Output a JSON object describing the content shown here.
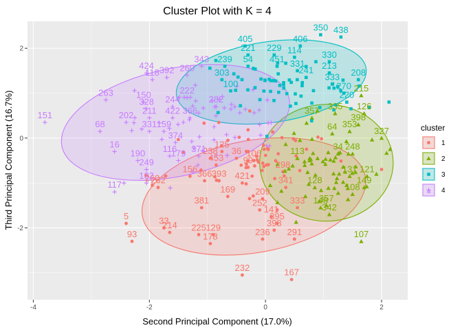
{
  "chart_data": {
    "type": "scatter",
    "title": "Cluster Plot with K = 4",
    "xlabel": "Second Principal Component (17.0%)",
    "ylabel": "Third Principal Component (16.7%)",
    "xlim": [
      -4.1,
      2.45
    ],
    "ylim": [
      -3.6,
      2.6
    ],
    "x_ticks": [
      -4,
      -2,
      0,
      2
    ],
    "y_ticks": [
      -2,
      0,
      2
    ],
    "grid": true,
    "legend": {
      "title": "cluster",
      "position": "right"
    },
    "series": [
      {
        "name": "1",
        "color": "#f8766d",
        "marker": "circle",
        "ellipse": {
          "cx": -0.2,
          "cy": -1.3,
          "rx": 1.95,
          "ry": 1.25,
          "angle": 10
        },
        "points": [
          {
            "x": -0.4,
            "y": -3.05,
            "label": "232"
          },
          {
            "x": 0.45,
            "y": -3.15,
            "label": "167"
          },
          {
            "x": -2.4,
            "y": -1.9,
            "label": "5"
          },
          {
            "x": -2.3,
            "y": -2.3,
            "label": "93"
          },
          {
            "x": -1.75,
            "y": -2.0,
            "label": "33"
          },
          {
            "x": -1.65,
            "y": -2.1,
            "label": "214"
          },
          {
            "x": -1.15,
            "y": -2.15,
            "label": "225"
          },
          {
            "x": -0.9,
            "y": -2.15,
            "label": "129"
          },
          {
            "x": -0.95,
            "y": -2.35,
            "label": "178"
          },
          {
            "x": -1.1,
            "y": -1.55,
            "label": "381"
          },
          {
            "x": -0.65,
            "y": -1.3,
            "label": "169"
          },
          {
            "x": -0.05,
            "y": -2.25,
            "label": "236"
          },
          {
            "x": 0.15,
            "y": -2.05,
            "label": "398"
          },
          {
            "x": 0.5,
            "y": -2.25,
            "label": "291"
          },
          {
            "x": 0.1,
            "y": -1.75,
            "label": "141"
          },
          {
            "x": 0.2,
            "y": -1.9,
            "label": "395"
          },
          {
            "x": -0.1,
            "y": -1.6,
            "label": "252"
          },
          {
            "x": -0.05,
            "y": -1.35,
            "label": "209"
          },
          {
            "x": 0.55,
            "y": -1.55,
            "label": "333"
          },
          {
            "x": -1.95,
            "y": -1.05,
            "label": "260"
          },
          {
            "x": -1.85,
            "y": -1.1,
            "label": "262"
          },
          {
            "x": -1.3,
            "y": -0.85,
            "label": "156"
          },
          {
            "x": -1.05,
            "y": -0.95,
            "label": "366"
          },
          {
            "x": -0.8,
            "y": -0.95,
            "label": "393"
          },
          {
            "x": -0.75,
            "y": -0.3,
            "label": "125"
          },
          {
            "x": -0.4,
            "y": -1.0,
            "label": "421"
          },
          {
            "x": -0.95,
            "y": -0.45,
            "label": "238"
          },
          {
            "x": -0.85,
            "y": -0.6,
            "label": "453"
          },
          {
            "x": -0.5,
            "y": -0.45,
            "label": "36"
          },
          {
            "x": -0.2,
            "y": -0.5,
            "label": "106"
          },
          {
            "x": 0.3,
            "y": -0.75,
            "label": "298"
          },
          {
            "x": 0.35,
            "y": -1.1,
            "label": "341"
          },
          {
            "x": -0.3,
            "y": -0.65,
            "label": "99"
          },
          {
            "x": -0.1,
            "y": -0.4,
            "label": "",
            "n": 55
          }
        ]
      },
      {
        "name": "2",
        "color": "#7cae00",
        "marker": "triangle",
        "ellipse": {
          "cx": 1.05,
          "cy": -0.55,
          "rx": 1.15,
          "ry": 1.3,
          "angle": 0
        },
        "points": [
          {
            "x": 1.65,
            "y": -2.3,
            "label": "107"
          },
          {
            "x": 2.0,
            "y": 0.0,
            "label": "327"
          },
          {
            "x": 1.7,
            "y": 0.55,
            "label": "126"
          },
          {
            "x": 1.6,
            "y": 0.3,
            "label": "398"
          },
          {
            "x": 1.65,
            "y": 0.95,
            "label": "215"
          },
          {
            "x": 1.45,
            "y": 0.15,
            "label": "353"
          },
          {
            "x": 1.5,
            "y": -0.35,
            "label": "248"
          },
          {
            "x": 1.75,
            "y": -0.85,
            "label": "121"
          },
          {
            "x": 1.7,
            "y": -1.1,
            "label": "149"
          },
          {
            "x": 1.5,
            "y": -1.25,
            "label": "108"
          },
          {
            "x": 1.45,
            "y": -0.85,
            "label": "131"
          },
          {
            "x": 1.25,
            "y": -0.35,
            "label": "34"
          },
          {
            "x": 1.15,
            "y": 0.1,
            "label": "64"
          },
          {
            "x": 1.05,
            "y": -1.5,
            "label": "357"
          },
          {
            "x": 0.95,
            "y": -1.55,
            "label": "148"
          },
          {
            "x": 1.1,
            "y": -1.7,
            "label": "342"
          },
          {
            "x": 0.85,
            "y": -1.1,
            "label": "128"
          },
          {
            "x": 0.55,
            "y": -0.45,
            "label": "113"
          },
          {
            "x": 0.8,
            "y": 0.45,
            "label": "357"
          },
          {
            "x": 1.2,
            "y": 0.55,
            "label": "335"
          },
          {
            "x": 1.05,
            "y": -0.5,
            "label": "",
            "n": 60
          }
        ]
      },
      {
        "name": "3",
        "color": "#00bfc4",
        "marker": "square",
        "ellipse": {
          "cx": 0.1,
          "cy": 1.25,
          "rx": 1.65,
          "ry": 0.9,
          "angle": 8
        },
        "points": [
          {
            "x": 0.95,
            "y": 2.3,
            "label": "350"
          },
          {
            "x": 1.3,
            "y": 2.25,
            "label": "438"
          },
          {
            "x": 0.6,
            "y": 2.05,
            "label": "406"
          },
          {
            "x": 0.15,
            "y": 1.85,
            "label": "229"
          },
          {
            "x": 0.5,
            "y": 1.8,
            "label": "114"
          },
          {
            "x": 1.1,
            "y": 1.7,
            "label": "330"
          },
          {
            "x": 1.1,
            "y": 1.45,
            "label": "213"
          },
          {
            "x": 1.6,
            "y": 1.3,
            "label": "208"
          },
          {
            "x": 1.15,
            "y": 1.2,
            "label": "333"
          },
          {
            "x": 0.55,
            "y": 1.5,
            "label": "331"
          },
          {
            "x": 0.7,
            "y": 1.35,
            "label": "241"
          },
          {
            "x": -0.35,
            "y": 2.05,
            "label": "405"
          },
          {
            "x": -0.3,
            "y": 1.85,
            "label": "221"
          },
          {
            "x": -0.7,
            "y": 1.6,
            "label": "239"
          },
          {
            "x": -0.3,
            "y": 1.6,
            "label": "54"
          },
          {
            "x": 0.2,
            "y": 1.6,
            "label": "451"
          },
          {
            "x": -0.75,
            "y": 1.3,
            "label": "303"
          },
          {
            "x": -0.6,
            "y": 1.05,
            "label": "100"
          },
          {
            "x": 1.35,
            "y": 1.0,
            "label": "270"
          },
          {
            "x": 1.4,
            "y": 0.8,
            "label": "220"
          },
          {
            "x": 0.4,
            "y": 1.1,
            "label": "",
            "n": 60
          }
        ]
      },
      {
        "name": "4",
        "color": "#c77cff",
        "marker": "plus",
        "ellipse": {
          "cx": -1.55,
          "cy": 0.35,
          "rx": 2.0,
          "ry": 1.2,
          "angle": 12
        },
        "points": [
          {
            "x": -3.8,
            "y": 0.35,
            "label": "151"
          },
          {
            "x": -2.75,
            "y": 0.85,
            "label": "263"
          },
          {
            "x": -2.85,
            "y": 0.15,
            "label": "68"
          },
          {
            "x": -2.6,
            "y": -0.3,
            "label": "16"
          },
          {
            "x": -2.4,
            "y": 0.35,
            "label": "202"
          },
          {
            "x": -2.2,
            "y": -0.5,
            "label": "190"
          },
          {
            "x": -2.05,
            "y": -0.7,
            "label": "249"
          },
          {
            "x": -2.05,
            "y": -1.0,
            "label": "132"
          },
          {
            "x": -2.6,
            "y": -1.2,
            "label": "117"
          },
          {
            "x": -2.05,
            "y": 1.45,
            "label": "424"
          },
          {
            "x": -1.95,
            "y": 1.3,
            "label": "118"
          },
          {
            "x": -1.7,
            "y": 1.35,
            "label": "392"
          },
          {
            "x": -1.35,
            "y": 1.4,
            "label": "260"
          },
          {
            "x": -1.1,
            "y": 1.6,
            "label": "343"
          },
          {
            "x": -2.1,
            "y": 0.8,
            "label": "150"
          },
          {
            "x": -2.05,
            "y": 0.65,
            "label": "328"
          },
          {
            "x": -2.0,
            "y": 0.45,
            "label": "211"
          },
          {
            "x": -2.0,
            "y": 0.15,
            "label": "331"
          },
          {
            "x": -1.75,
            "y": 0.15,
            "label": "159"
          },
          {
            "x": -1.6,
            "y": 0.45,
            "label": "422"
          },
          {
            "x": -1.6,
            "y": 0.7,
            "label": "244"
          },
          {
            "x": -1.55,
            "y": -0.1,
            "label": "374"
          },
          {
            "x": -1.65,
            "y": -0.4,
            "label": "116"
          },
          {
            "x": -1.5,
            "y": -0.5,
            "label": "179"
          },
          {
            "x": -1.15,
            "y": -0.4,
            "label": "371"
          },
          {
            "x": -1.35,
            "y": 0.9,
            "label": "222"
          },
          {
            "x": -1.3,
            "y": 0.45,
            "label": "366"
          },
          {
            "x": -0.85,
            "y": 0.7,
            "label": "282"
          },
          {
            "x": -1.0,
            "y": 0.3,
            "label": "",
            "n": 55
          }
        ]
      }
    ]
  }
}
